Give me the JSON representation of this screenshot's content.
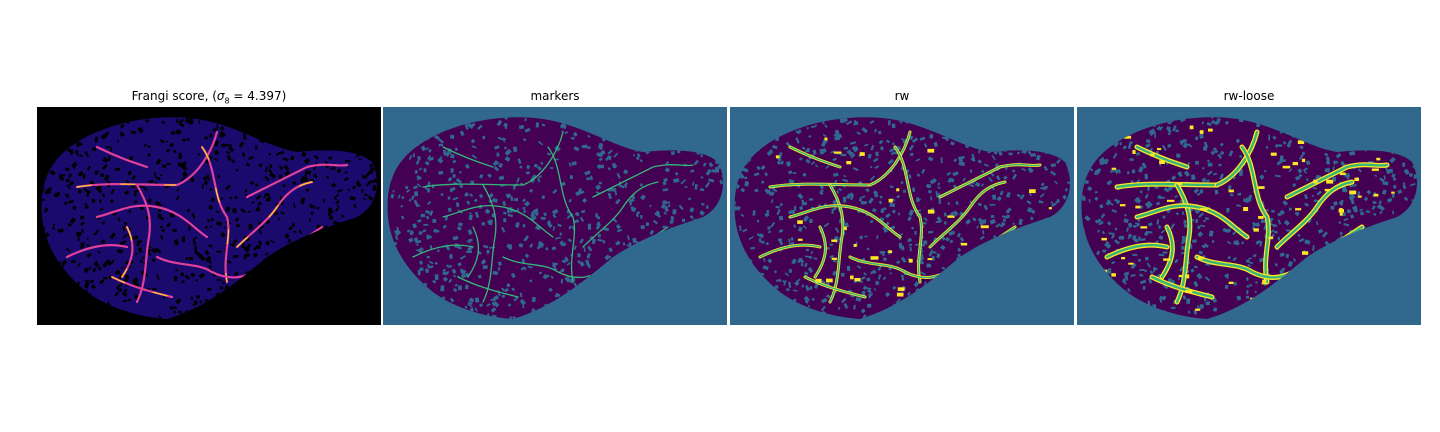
{
  "panels": [
    {
      "title": "Frangi score, (σ8 = 4.397)",
      "title_main": "Frangi score, (",
      "title_sigma": "σ",
      "title_sub": "8",
      "title_rest": " = 4.397)",
      "background": "#000000",
      "tissue": "#1b0a6e",
      "vessel": "#e0409a",
      "highlight": "#fcce25"
    },
    {
      "title": "markers",
      "background": "#31688e",
      "tissue": "#440154",
      "vessel": "#35b779",
      "highlight": "#35b779"
    },
    {
      "title": "rw",
      "background": "#31688e",
      "tissue": "#440154",
      "vessel": "#35b779",
      "highlight": "#fde725"
    },
    {
      "title": "rw-loose",
      "background": "#31688e",
      "tissue": "#440154",
      "vessel": "#35b779",
      "highlight": "#fde725"
    }
  ]
}
